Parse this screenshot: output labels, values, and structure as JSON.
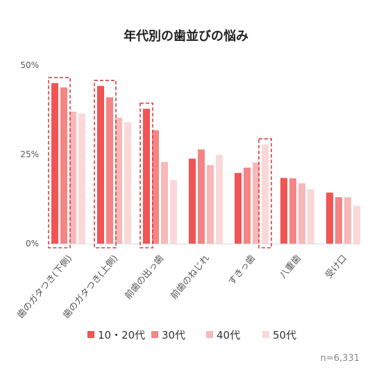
{
  "chart_data": {
    "type": "bar",
    "title": "年代別の歯並びの悩み",
    "categories": [
      "歯のガタつき(下側)",
      "歯のガタつき(上側)",
      "前歯の出っ歯",
      "前歯のねじれ",
      "すきっ歯",
      "八重歯",
      "受け口"
    ],
    "series": [
      {
        "name": "10・20代",
        "color": "#f05454",
        "values": [
          45,
          44.2,
          37.8,
          23.8,
          19.8,
          18.4,
          14.3
        ]
      },
      {
        "name": "30代",
        "color": "#f48585",
        "values": [
          43.8,
          41,
          31.8,
          26.4,
          21.3,
          18.3,
          13
        ]
      },
      {
        "name": "40代",
        "color": "#f7b8b8",
        "values": [
          37,
          35.3,
          22.9,
          22,
          22.7,
          16.9,
          13
        ]
      },
      {
        "name": "50代",
        "color": "#fbd8d8",
        "values": [
          36.5,
          34,
          17.8,
          24.9,
          27.8,
          15.2,
          10.6
        ]
      }
    ],
    "ylim": [
      0,
      50
    ],
    "yticks": [
      "0%",
      "25%",
      "50%"
    ],
    "ytick_values": [
      0,
      25,
      50
    ],
    "highlight_color": "#e03c3c",
    "highlights": [
      {
        "category": 0,
        "series": [
          0,
          1
        ]
      },
      {
        "category": 1,
        "series": [
          0,
          1
        ]
      },
      {
        "category": 2,
        "series": [
          0
        ]
      },
      {
        "category": 4,
        "series": [
          3
        ]
      }
    ],
    "legend_position": "bottom",
    "note": "n=6,331"
  }
}
